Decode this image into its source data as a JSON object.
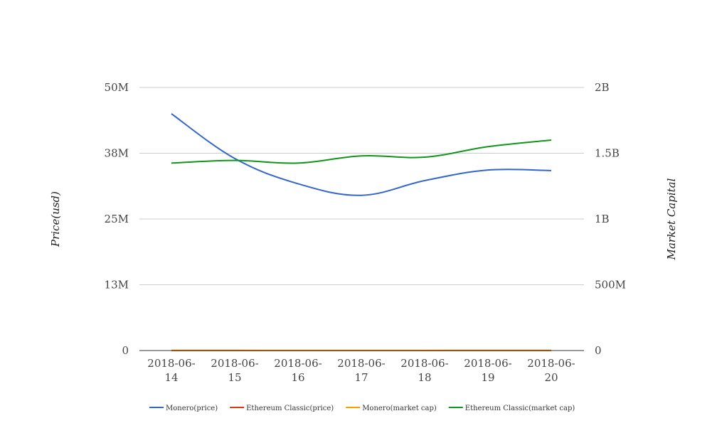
{
  "chart_data": {
    "type": "line",
    "categories": [
      "2018-06-14",
      "2018-06-15",
      "2018-06-16",
      "2018-06-17",
      "2018-06-18",
      "2018-06-19",
      "2018-06-20"
    ],
    "category_labels": [
      [
        "2018-06-",
        "14"
      ],
      [
        "2018-06-",
        "15"
      ],
      [
        "2018-06-",
        "16"
      ],
      [
        "2018-06-",
        "17"
      ],
      [
        "2018-06-",
        "18"
      ],
      [
        "2018-06-",
        "19"
      ],
      [
        "2018-06-",
        "20"
      ]
    ],
    "ylabel": "Price(usd)",
    "y2label": "Market Capital",
    "ylim": [
      0,
      50000000
    ],
    "y2lim": [
      0,
      2000000000
    ],
    "yticks": [
      {
        "value": 0,
        "label": "0"
      },
      {
        "value": 12500000,
        "label": "13M"
      },
      {
        "value": 25000000,
        "label": "25M"
      },
      {
        "value": 37500000,
        "label": "38M"
      },
      {
        "value": 50000000,
        "label": "50M"
      }
    ],
    "y2ticks": [
      {
        "value": 0,
        "label": "0"
      },
      {
        "value": 500000000,
        "label": "500M"
      },
      {
        "value": 1000000000,
        "label": "1B"
      },
      {
        "value": 1500000000,
        "label": "1.5B"
      },
      {
        "value": 2000000000,
        "label": "2B"
      }
    ],
    "grid": true,
    "legend_position": "bottom",
    "series": [
      {
        "name": "Monero(price)",
        "axis": "left",
        "color": "#3366cc",
        "values": [
          45000000,
          36500000,
          31700000,
          29500000,
          32300000,
          34300000,
          34200000
        ]
      },
      {
        "name": "Ethereum Classic(price)",
        "axis": "left",
        "color": "#dc3912",
        "values": [
          14,
          14,
          13,
          14,
          14,
          15,
          15
        ]
      },
      {
        "name": "Monero(market cap)",
        "axis": "right",
        "color": "#ff9900",
        "values": [
          1900000,
          1700000,
          1500000,
          1500000,
          1600000,
          1800000,
          1800000
        ]
      },
      {
        "name": "Ethereum Classic(market cap)",
        "axis": "right",
        "color": "#109618",
        "values": [
          1425000000,
          1445000000,
          1425000000,
          1480000000,
          1470000000,
          1550000000,
          1600000000
        ]
      }
    ]
  }
}
